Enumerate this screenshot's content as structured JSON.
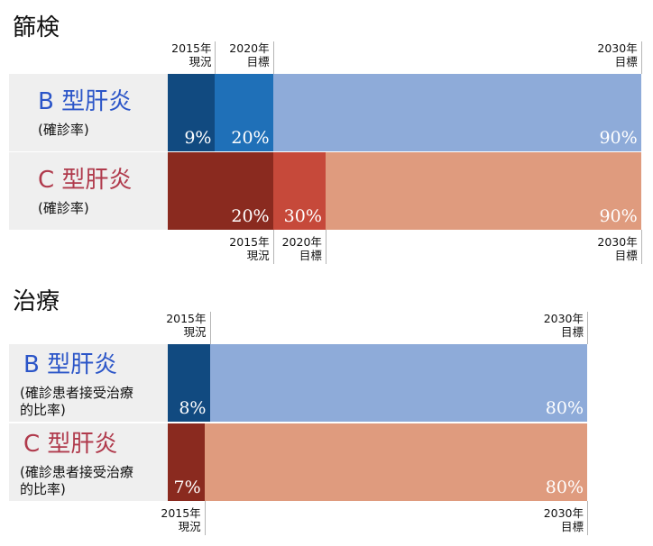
{
  "colors": {
    "hepB_dark": "#114a80",
    "hepB_mid": "#1f70b8",
    "hepB_light": "#8eabd9",
    "hepC_dark": "#8a2a1f",
    "hepC_mid": "#c6493a",
    "hepC_light": "#df9b7e",
    "label_b": "#2b55c8",
    "label_c": "#b03a4c"
  },
  "chart_data": [
    {
      "type": "bar",
      "title": "篩検",
      "stacked_overlay": true,
      "xlim": [
        0,
        100
      ],
      "milestones": [
        "2015年 現況",
        "2020年 目標",
        "2030年 目標"
      ],
      "series": [
        {
          "name": "B 型肝炎",
          "subtitle": "(確診率)",
          "values": [
            9,
            20,
            90
          ],
          "labels": [
            "9%",
            "20%",
            "90%"
          ]
        },
        {
          "name": "C 型肝炎",
          "subtitle": "(確診率)",
          "values": [
            20,
            30,
            90
          ],
          "labels": [
            "20%",
            "30%",
            "90%"
          ]
        }
      ],
      "top_markers": [
        {
          "line1": "2015年",
          "line2": "現況",
          "value": 9
        },
        {
          "line1": "2020年",
          "line2": "目標",
          "value": 20
        },
        {
          "line1": "2030年",
          "line2": "目標",
          "value": 90
        }
      ],
      "bottom_markers": [
        {
          "line1": "2015年",
          "line2": "現況",
          "value": 20
        },
        {
          "line1": "2020年",
          "line2": "目標",
          "value": 30
        },
        {
          "line1": "2030年",
          "line2": "目標",
          "value": 90
        }
      ]
    },
    {
      "type": "bar",
      "title": "治療",
      "stacked_overlay": true,
      "xlim": [
        0,
        80
      ],
      "milestones": [
        "2015年 現況",
        "2030年 目標"
      ],
      "series": [
        {
          "name": "B 型肝炎",
          "subtitle1": "(確診患者接受治療",
          "subtitle2": "的比率)",
          "values": [
            8,
            80
          ],
          "labels": [
            "8%",
            "80%"
          ]
        },
        {
          "name": "C 型肝炎",
          "subtitle1": "(確診患者接受治療",
          "subtitle2": "的比率)",
          "values": [
            7,
            80
          ],
          "labels": [
            "7%",
            "80%"
          ]
        }
      ],
      "top_markers": [
        {
          "line1": "2015年",
          "line2": "現況",
          "value": 8
        },
        {
          "line1": "2030年",
          "line2": "目標",
          "value": 80
        }
      ],
      "bottom_markers": [
        {
          "line1": "2015年",
          "line2": "現況",
          "value": 7
        },
        {
          "line1": "2030年",
          "line2": "目標",
          "value": 80
        }
      ]
    }
  ]
}
